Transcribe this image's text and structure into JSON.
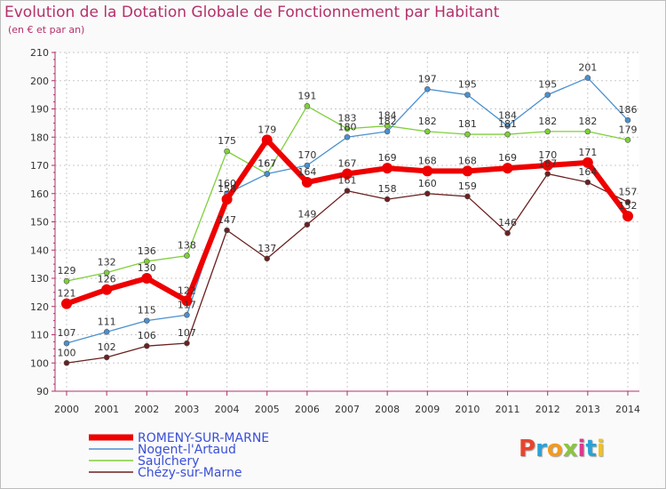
{
  "page": {
    "title": "Evolution de la Dotation Globale de Fonctionnement par Habitant",
    "subtitle": "(en € et par an)"
  },
  "logo": {
    "text": "Proxiti",
    "colors": [
      "#e8452c",
      "#2aa2d6",
      "#f29a1f",
      "#8bc53f",
      "#d83c8c",
      "#2aa2d6",
      "#f2c21f"
    ]
  },
  "chart_data": {
    "type": "line",
    "title": "Evolution de la Dotation Globale de Fonctionnement par Habitant",
    "subtitle": "(en € et par an)",
    "xlabel": "",
    "ylabel": "",
    "x": [
      "2000",
      "2001",
      "2002",
      "2003",
      "2004",
      "2005",
      "2006",
      "2007",
      "2008",
      "2009",
      "2010",
      "2011",
      "2012",
      "2013",
      "2014"
    ],
    "ylim": [
      90,
      210
    ],
    "yticks": [
      90,
      100,
      110,
      120,
      130,
      140,
      150,
      160,
      170,
      180,
      190,
      200,
      210
    ],
    "grid": true,
    "legend_position": "bottom-left",
    "series": [
      {
        "name": "ROMENY-SUR-MARNE",
        "color": "#ee0000",
        "values": [
          121,
          126,
          130,
          122,
          158,
          179,
          164,
          167,
          169,
          168,
          168,
          169,
          170,
          171,
          152
        ]
      },
      {
        "name": "Nogent-l'Artaud",
        "color": "#4a90d0",
        "values": [
          107,
          111,
          115,
          117,
          160,
          167,
          170,
          180,
          182,
          197,
          195,
          184,
          195,
          201,
          186
        ]
      },
      {
        "name": "Saulchery",
        "color": "#7ed03a",
        "values": [
          129,
          132,
          136,
          138,
          175,
          167,
          191,
          183,
          184,
          182,
          181,
          181,
          182,
          182,
          179
        ]
      },
      {
        "name": "Chézy-sur-Marne",
        "color": "#6b2020",
        "values": [
          100,
          102,
          106,
          107,
          147,
          137,
          149,
          161,
          158,
          160,
          159,
          146,
          167,
          164,
          157
        ]
      }
    ]
  }
}
